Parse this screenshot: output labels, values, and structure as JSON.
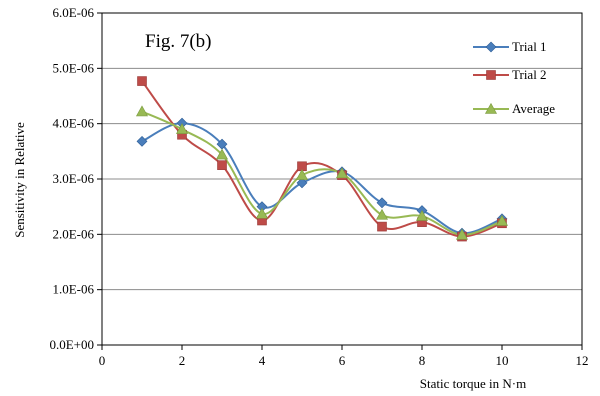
{
  "chart_data": {
    "type": "line",
    "title": "Fig. 7(b)",
    "xlabel": "Static torque in N·m",
    "ylabel": "Sensitivity in Relative",
    "xlim": [
      0,
      12
    ],
    "ylim": [
      0,
      6e-06
    ],
    "x_ticks": [
      0,
      2,
      4,
      6,
      8,
      10,
      12
    ],
    "x_tick_labels": [
      "0",
      "2",
      "4",
      "6",
      "8",
      "10",
      "12"
    ],
    "y_ticks": [
      0,
      1e-06,
      2e-06,
      3e-06,
      4e-06,
      5e-06,
      6e-06
    ],
    "y_tick_labels": [
      "0.0E+00",
      "1.0E-06",
      "2.0E-06",
      "3.0E-06",
      "4.0E-06",
      "5.0E-06",
      "6.0E-06"
    ],
    "grid": "horizontal",
    "legend_position": "top-right",
    "x": [
      1,
      2,
      3,
      4,
      5,
      6,
      7,
      8,
      9,
      10
    ],
    "series": [
      {
        "name": "Trial 1",
        "color": "#4a7ebb",
        "marker": "diamond",
        "values": [
          3.68e-06,
          4.01e-06,
          3.63e-06,
          2.5e-06,
          2.93e-06,
          3.13e-06,
          2.57e-06,
          2.43e-06,
          2.02e-06,
          2.28e-06
        ]
      },
      {
        "name": "Trial 2",
        "color": "#be4b48",
        "marker": "square",
        "values": [
          4.77e-06,
          3.8e-06,
          3.25e-06,
          2.25e-06,
          3.23e-06,
          3.07e-06,
          2.14e-06,
          2.22e-06,
          1.96e-06,
          2.2e-06
        ]
      },
      {
        "name": "Average",
        "color": "#98b954",
        "marker": "triangle",
        "values": [
          4.22e-06,
          3.9e-06,
          3.44e-06,
          2.37e-06,
          3.07e-06,
          3.1e-06,
          2.35e-06,
          2.33e-06,
          1.99e-06,
          2.24e-06
        ]
      }
    ]
  }
}
